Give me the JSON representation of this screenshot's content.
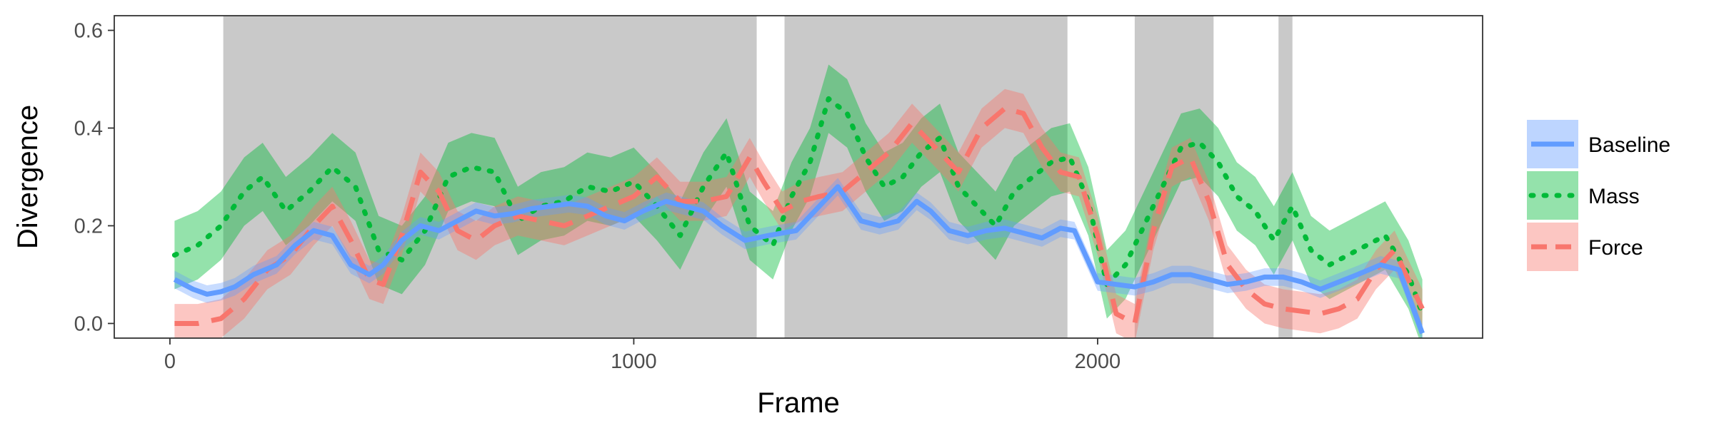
{
  "chart_data": {
    "type": "line",
    "xlabel": "Frame",
    "ylabel": "Divergence",
    "xlim": [
      -120,
      2830
    ],
    "ylim": [
      -0.03,
      0.63
    ],
    "x_ticks": [
      0,
      1000,
      2000
    ],
    "y_ticks": [
      0.0,
      0.2,
      0.4,
      0.6
    ],
    "y_tick_labels": [
      "0.0",
      "0.2",
      "0.4",
      "0.6"
    ],
    "grid": false,
    "legend_position": "right",
    "shaded_regions": [
      [
        115,
        1265
      ],
      [
        1325,
        1935
      ],
      [
        2080,
        2250
      ],
      [
        2390,
        2420
      ]
    ],
    "series": [
      {
        "name": "Baseline",
        "color": "#619CFF",
        "line_style": "solid",
        "x": [
          10,
          50,
          80,
          110,
          140,
          180,
          230,
          270,
          310,
          350,
          390,
          430,
          460,
          500,
          540,
          580,
          620,
          660,
          700,
          740,
          780,
          820,
          860,
          900,
          940,
          980,
          1020,
          1070,
          1110,
          1150,
          1190,
          1240,
          1290,
          1350,
          1400,
          1440,
          1490,
          1530,
          1570,
          1610,
          1640,
          1680,
          1720,
          1760,
          1800,
          1840,
          1880,
          1920,
          1950,
          2000,
          2040,
          2080,
          2120,
          2160,
          2200,
          2240,
          2280,
          2320,
          2360,
          2400,
          2440,
          2480,
          2520,
          2560,
          2610,
          2650,
          2700
        ],
        "y": [
          0.09,
          0.07,
          0.06,
          0.065,
          0.075,
          0.1,
          0.12,
          0.16,
          0.19,
          0.18,
          0.12,
          0.1,
          0.12,
          0.17,
          0.2,
          0.19,
          0.21,
          0.23,
          0.22,
          0.225,
          0.235,
          0.24,
          0.245,
          0.24,
          0.22,
          0.21,
          0.23,
          0.25,
          0.24,
          0.23,
          0.2,
          0.17,
          0.18,
          0.19,
          0.24,
          0.28,
          0.21,
          0.2,
          0.21,
          0.25,
          0.23,
          0.19,
          0.18,
          0.19,
          0.195,
          0.185,
          0.175,
          0.195,
          0.19,
          0.085,
          0.08,
          0.075,
          0.085,
          0.1,
          0.1,
          0.09,
          0.08,
          0.085,
          0.095,
          0.095,
          0.085,
          0.07,
          0.085,
          0.1,
          0.12,
          0.11,
          -0.02
        ],
        "band": 0.018
      },
      {
        "name": "Mass",
        "color": "#00BA38",
        "line_style": "dotted",
        "x": [
          10,
          60,
          110,
          160,
          200,
          250,
          300,
          350,
          400,
          450,
          500,
          550,
          600,
          650,
          700,
          750,
          800,
          850,
          900,
          950,
          1000,
          1050,
          1100,
          1150,
          1200,
          1250,
          1300,
          1340,
          1380,
          1420,
          1460,
          1500,
          1540,
          1580,
          1620,
          1660,
          1700,
          1740,
          1780,
          1820,
          1860,
          1900,
          1940,
          1980,
          2020,
          2060,
          2100,
          2140,
          2180,
          2220,
          2260,
          2300,
          2340,
          2380,
          2420,
          2460,
          2500,
          2540,
          2580,
          2620,
          2670,
          2700
        ],
        "y": [
          0.14,
          0.16,
          0.2,
          0.27,
          0.3,
          0.23,
          0.27,
          0.32,
          0.28,
          0.15,
          0.13,
          0.19,
          0.3,
          0.32,
          0.31,
          0.21,
          0.24,
          0.25,
          0.28,
          0.27,
          0.29,
          0.24,
          0.18,
          0.28,
          0.35,
          0.2,
          0.16,
          0.26,
          0.33,
          0.46,
          0.43,
          0.34,
          0.28,
          0.3,
          0.35,
          0.38,
          0.28,
          0.24,
          0.2,
          0.27,
          0.3,
          0.33,
          0.34,
          0.25,
          0.08,
          0.12,
          0.2,
          0.28,
          0.36,
          0.37,
          0.33,
          0.26,
          0.23,
          0.17,
          0.24,
          0.15,
          0.12,
          0.14,
          0.16,
          0.18,
          0.1,
          0.02
        ],
        "band": 0.07
      },
      {
        "name": "Force",
        "color": "#F8766D",
        "line_style": "dashed",
        "x": [
          10,
          60,
          110,
          160,
          210,
          260,
          310,
          350,
          390,
          430,
          460,
          500,
          540,
          580,
          620,
          660,
          700,
          750,
          800,
          850,
          900,
          950,
          1000,
          1050,
          1100,
          1150,
          1200,
          1250,
          1280,
          1320,
          1360,
          1400,
          1450,
          1500,
          1550,
          1600,
          1650,
          1700,
          1750,
          1800,
          1840,
          1880,
          1920,
          1960,
          2000,
          2040,
          2080,
          2120,
          2160,
          2200,
          2240,
          2280,
          2320,
          2360,
          2400,
          2440,
          2480,
          2520,
          2560,
          2600,
          2640,
          2700
        ],
        "y": [
          0.0,
          0.0,
          0.01,
          0.05,
          0.11,
          0.14,
          0.2,
          0.24,
          0.17,
          0.09,
          0.08,
          0.18,
          0.31,
          0.27,
          0.19,
          0.17,
          0.2,
          0.22,
          0.21,
          0.2,
          0.22,
          0.24,
          0.26,
          0.3,
          0.25,
          0.25,
          0.26,
          0.34,
          0.29,
          0.23,
          0.25,
          0.26,
          0.27,
          0.31,
          0.35,
          0.41,
          0.36,
          0.31,
          0.4,
          0.44,
          0.43,
          0.36,
          0.31,
          0.3,
          0.18,
          0.02,
          0.0,
          0.19,
          0.32,
          0.34,
          0.25,
          0.12,
          0.07,
          0.04,
          0.03,
          0.025,
          0.02,
          0.03,
          0.05,
          0.11,
          0.15,
          0.03
        ],
        "band": 0.04
      }
    ]
  }
}
